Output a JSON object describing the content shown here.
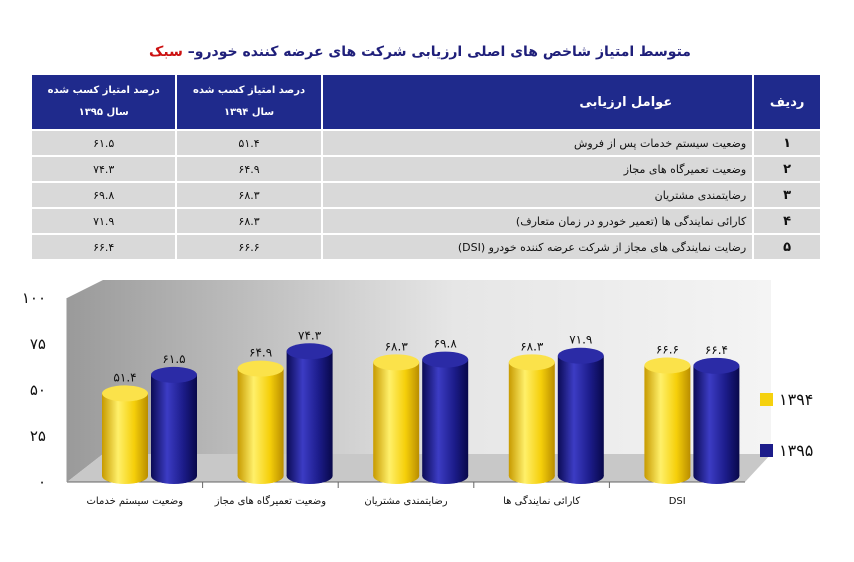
{
  "title": {
    "main": "متوسط امتیاز شاخص های اصلی ارزیابی شرکت های عرضه کننده خودرو–",
    "accent": " سبک"
  },
  "table": {
    "headers": {
      "row": "ردیف",
      "factor": "عوامل ارزیابی",
      "col1394_line1": "درصد امتیاز کسب شده",
      "col1394_line2": "سال ۱۳۹۴",
      "col1395_line1": "درصد امتیاز کسب شده",
      "col1395_line2": "سال ۱۳۹۵"
    },
    "rows": [
      {
        "num": "۱",
        "factor": "وضعیت سیستم خدمات پس از فروش",
        "v1394": "۵۱.۴",
        "v1395": "۶۱.۵"
      },
      {
        "num": "۲",
        "factor": "وضعیت تعمیرگاه های مجاز",
        "v1394": "۶۴.۹",
        "v1395": "۷۴.۳"
      },
      {
        "num": "۳",
        "factor": "رضایتمندی مشتریان",
        "v1394": "۶۸.۳",
        "v1395": "۶۹.۸"
      },
      {
        "num": "۴",
        "factor": "کارائی نمایندگی ها (تعمیر خودرو در زمان متعارف)",
        "v1394": "۶۸.۳",
        "v1395": "۷۱.۹"
      },
      {
        "num": "۵",
        "factor": "رضایت نمایندگی های مجاز  از شرکت عرضه کننده خودرو (DSI)",
        "v1394": "۶۶.۶",
        "v1395": "۶۶.۴"
      }
    ]
  },
  "chart_data": {
    "type": "bar",
    "categories": [
      "وضعیت سیستم خدمات",
      "وضعیت تعمیرگاه های مجاز",
      "رضایتمندی مشتریان",
      "کارائی نمایندگی ها",
      "DSI"
    ],
    "series": [
      {
        "name": "۱۳۹۴",
        "values": [
          51.4,
          64.9,
          68.3,
          68.3,
          66.6
        ],
        "labels": [
          "۵۱.۴",
          "۶۴.۹",
          "۶۸.۳",
          "۶۸.۳",
          "۶۶.۶"
        ],
        "color": "#f5d10e"
      },
      {
        "name": "۱۳۹۵",
        "values": [
          61.5,
          74.3,
          69.8,
          71.9,
          66.4
        ],
        "labels": [
          "۶۱.۵",
          "۷۴.۳",
          "۶۹.۸",
          "۷۱.۹",
          "۶۶.۴"
        ],
        "color": "#1c1c8a"
      }
    ],
    "ylim": [
      0,
      100
    ],
    "yticks": [
      0,
      25,
      50,
      75,
      100
    ],
    "ytick_labels": [
      "۰",
      "۲۵",
      "۵۰",
      "۷۵",
      "۱۰۰"
    ],
    "grid": false,
    "legend_position": "right"
  }
}
